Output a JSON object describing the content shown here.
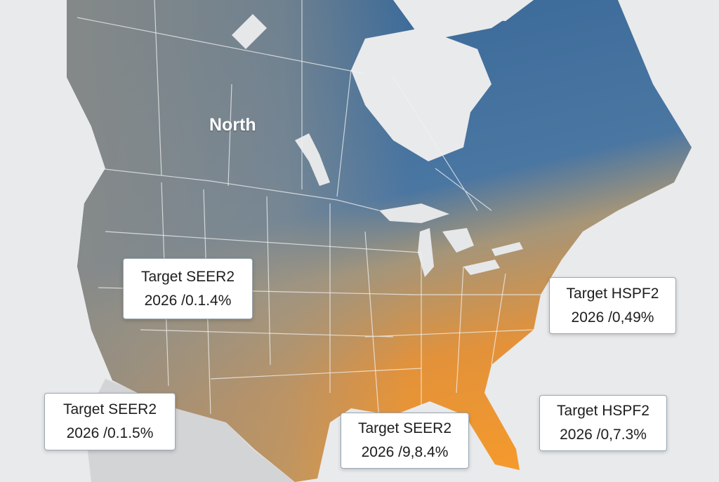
{
  "map_label": "North",
  "callouts": [
    {
      "title": "Target SEER2",
      "value": "2026 /0.1.4%"
    },
    {
      "title": "Target SEER2",
      "value": "2026 /0.1.5%"
    },
    {
      "title": "Target SEER2",
      "value": "2026 /9,8.4%"
    },
    {
      "title": "Target HSPF2",
      "value": "2026 /0,49%"
    },
    {
      "title": "Target HSPF2",
      "value": "2026 /0,7.3%"
    }
  ]
}
